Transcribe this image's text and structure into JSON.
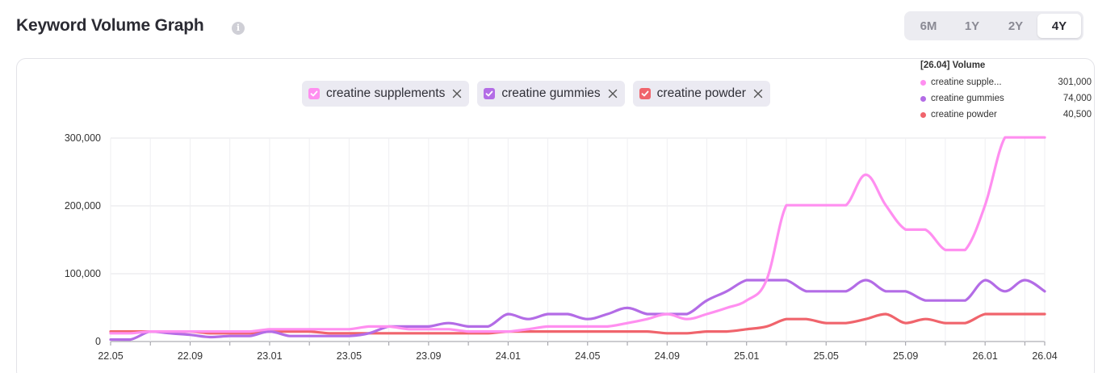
{
  "header": {
    "title": "Keyword Volume Graph",
    "info_icon": "info-icon"
  },
  "range": {
    "options": [
      "6M",
      "1Y",
      "2Y",
      "4Y"
    ],
    "selected": "4Y"
  },
  "legend_chips": [
    {
      "label": "creatine supplements",
      "color": "#ff8ff0"
    },
    {
      "label": "creatine gummies",
      "color": "#b36ce6"
    },
    {
      "label": "creatine powder",
      "color": "#f0646c"
    }
  ],
  "tooltip": {
    "header": "[26.04] Volume",
    "rows": [
      {
        "name": "creatine supple...",
        "value": "301,000",
        "color": "#ff8ff0"
      },
      {
        "name": "creatine gummies",
        "value": "74,000",
        "color": "#b36ce6"
      },
      {
        "name": "creatine powder",
        "value": "40,500",
        "color": "#f0646c"
      }
    ]
  },
  "chart_data": {
    "type": "line",
    "title": "",
    "xlabel": "",
    "ylabel": "",
    "ylim": [
      0,
      300000
    ],
    "yticks": [
      0,
      100000,
      200000,
      300000
    ],
    "ytick_labels": [
      "0",
      "100,000",
      "200,000",
      "300,000"
    ],
    "xtick_labels": [
      "22.05",
      "22.09",
      "23.01",
      "23.05",
      "23.09",
      "24.01",
      "24.05",
      "24.09",
      "25.01",
      "25.05",
      "25.09",
      "26.01",
      "26.04"
    ],
    "xtick_month_index": [
      0,
      4,
      8,
      12,
      16,
      20,
      24,
      28,
      32,
      36,
      40,
      44,
      47
    ],
    "grid": true,
    "x": [
      "22.05",
      "22.06",
      "22.07",
      "22.08",
      "22.09",
      "22.10",
      "22.11",
      "22.12",
      "23.01",
      "23.02",
      "23.03",
      "23.04",
      "23.05",
      "23.06",
      "23.07",
      "23.08",
      "23.09",
      "23.10",
      "23.11",
      "23.12",
      "24.01",
      "24.02",
      "24.03",
      "24.04",
      "24.05",
      "24.06",
      "24.07",
      "24.08",
      "24.09",
      "24.10",
      "24.11",
      "24.12",
      "25.01",
      "25.02",
      "25.03",
      "25.04",
      "25.05",
      "25.06",
      "25.07",
      "25.08",
      "25.09",
      "25.10",
      "25.11",
      "25.12",
      "26.01",
      "26.02",
      "26.03",
      "26.04"
    ],
    "series": [
      {
        "name": "creatine supplements",
        "color": "#ff8ff0",
        "values": [
          12100,
          12100,
          14800,
          14800,
          14800,
          14800,
          14800,
          14800,
          18100,
          18100,
          18100,
          18100,
          18100,
          22200,
          22200,
          18100,
          18100,
          18100,
          14800,
          14800,
          14800,
          18100,
          22200,
          22200,
          22200,
          22200,
          27100,
          33100,
          40500,
          33100,
          40500,
          49500,
          60500,
          90500,
          201000,
          201000,
          201000,
          201000,
          246000,
          201000,
          165000,
          165000,
          135000,
          135000,
          201000,
          301000,
          301000,
          301000
        ]
      },
      {
        "name": "creatine gummies",
        "color": "#b36ce6",
        "values": [
          2900,
          2900,
          14800,
          12100,
          9900,
          6600,
          8100,
          8100,
          14800,
          8100,
          8100,
          8100,
          8100,
          12100,
          22200,
          22200,
          22200,
          27100,
          22200,
          22200,
          40500,
          33100,
          40500,
          40500,
          33100,
          40500,
          49500,
          40500,
          40500,
          40500,
          60500,
          74000,
          90500,
          90500,
          90500,
          74000,
          74000,
          74000,
          90500,
          74000,
          74000,
          60500,
          60500,
          60500,
          90500,
          74000,
          90500,
          74000
        ]
      },
      {
        "name": "creatine powder",
        "color": "#f0646c",
        "values": [
          14800,
          14800,
          14800,
          14800,
          14800,
          12100,
          12100,
          12100,
          14800,
          14800,
          14800,
          12100,
          12100,
          12100,
          12100,
          12100,
          12100,
          12100,
          12100,
          12100,
          14800,
          14800,
          14800,
          14800,
          14800,
          14800,
          14800,
          14800,
          12100,
          12100,
          14800,
          14800,
          18100,
          22200,
          33100,
          33100,
          27100,
          27100,
          33100,
          40500,
          27100,
          33100,
          27100,
          27100,
          40500,
          40500,
          40500,
          40500
        ]
      }
    ]
  }
}
